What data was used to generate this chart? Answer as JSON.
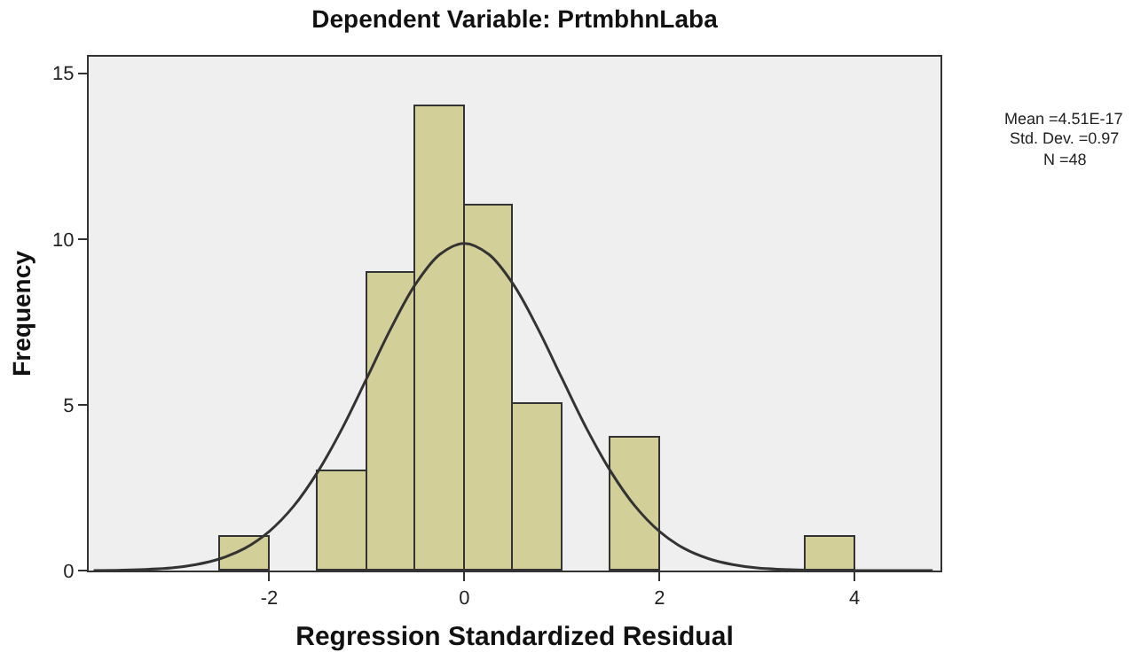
{
  "chart_data": {
    "type": "histogram",
    "title": "Dependent Variable: PrtmbhnLaba",
    "xlabel": "Regression Standardized Residual",
    "ylabel": "Frequency",
    "annotations": [
      "Mean =4.51E-17",
      "Std. Dev. =0.97",
      "N =48"
    ],
    "series": [
      {
        "color": "#d3cf98",
        "bins": [
          -2.5,
          -2,
          -1.5,
          -1,
          -0.5,
          0,
          0.5,
          1,
          1.5,
          2,
          2.5,
          3,
          3.5,
          4
        ],
        "values": [
          1,
          0,
          3,
          9,
          14,
          11,
          5,
          0,
          4,
          0,
          0,
          0,
          1
        ]
      },
      {
        "type": "line",
        "color": "#333333",
        "x": [
          -3.8,
          -3.5,
          -3,
          -2.75,
          -2.5,
          -2.25,
          -2,
          -1.75,
          -1.5,
          -1.25,
          -1,
          -0.75,
          -0.5,
          -0.25,
          0,
          0.25,
          0.5,
          0.75,
          1,
          1.25,
          1.5,
          1.75,
          2,
          2.25,
          2.5,
          2.75,
          3,
          3.5,
          4,
          4.8
        ],
        "values": [
          0,
          0.01,
          0.08,
          0.18,
          0.36,
          0.67,
          1.18,
          1.94,
          2.99,
          4.3,
          5.8,
          7.32,
          8.64,
          9.54,
          9.87,
          9.54,
          8.64,
          7.32,
          5.8,
          4.3,
          2.99,
          1.94,
          1.18,
          0.67,
          0.36,
          0.18,
          0.08,
          0.01,
          0,
          0
        ]
      }
    ],
    "xlim": [
      -3.85,
      4.88
    ],
    "ylim": [
      0,
      15.5
    ],
    "xticks": [
      -2,
      0,
      2,
      4
    ],
    "yticks": [
      0,
      5,
      10,
      15
    ],
    "grid": false,
    "marker": "none",
    "line_style": "solid"
  }
}
